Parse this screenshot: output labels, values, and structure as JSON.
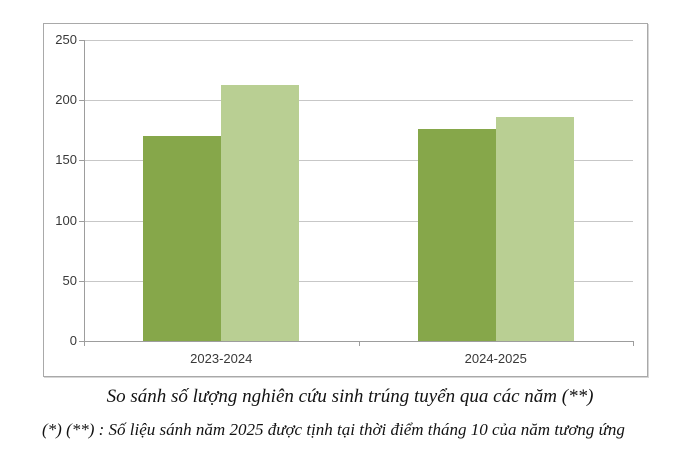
{
  "chart_data": {
    "type": "bar",
    "categories": [
      "2023-2024",
      "2024-2025"
    ],
    "series": [
      {
        "color": "#86a74a",
        "values": [
          170,
          176
        ]
      },
      {
        "color": "#b9cf93",
        "values": [
          213,
          186
        ]
      }
    ],
    "title": "",
    "xlabel": "",
    "ylabel": "",
    "ylim": [
      0,
      250
    ],
    "yticks": [
      0,
      50,
      100,
      150,
      200,
      250
    ],
    "grid": "horizontal",
    "legend": "none",
    "colors": {
      "gridline": "#c7c7c7",
      "axis": "#9d9d9d",
      "frame_border": "#a9a9a9",
      "tick_text": "#393939"
    }
  },
  "caption": "So sánh số lượng nghiên cứu sinh trúng tuyển qua các năm (**)",
  "footnote": "(*) (**) : Số liệu sánh năm 2025 được tịnh tại thời điểm tháng 10 của năm tương ứng"
}
